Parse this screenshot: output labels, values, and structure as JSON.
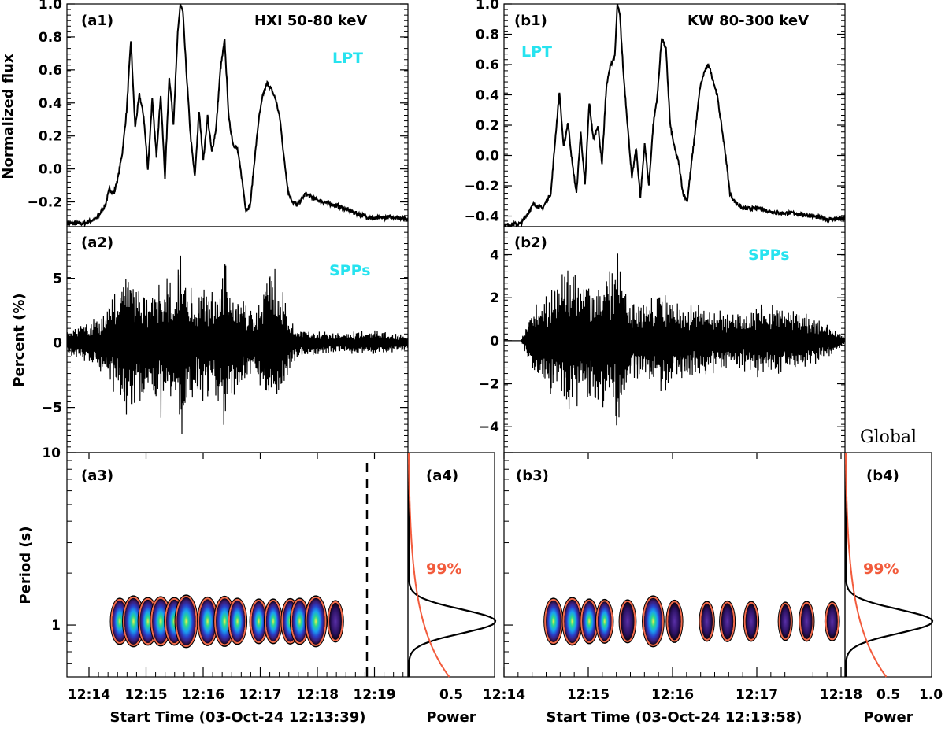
{
  "chart_data": [
    {
      "panel": "a1",
      "type": "line",
      "label": "(a1)",
      "annotation": "HXI 50-80 keV",
      "tag": "LPT",
      "ylabel": "Normalized flux",
      "ylim": [
        -0.35,
        1.0
      ],
      "yticks": [
        "1.0",
        "0.8",
        "0.6",
        "0.4",
        "0.2",
        "0.0",
        "−0.2"
      ],
      "x": [
        0,
        20,
        35,
        45,
        50,
        55,
        60,
        65,
        70,
        75,
        80,
        85,
        90,
        95,
        100,
        105,
        110,
        115,
        120,
        125,
        130,
        133,
        136,
        140,
        145,
        150,
        155,
        160,
        165,
        170,
        175,
        180,
        185,
        190,
        195,
        200,
        205,
        210,
        215,
        220,
        225,
        230,
        235,
        240,
        245,
        250,
        255,
        260,
        265,
        270,
        280,
        290,
        300,
        315,
        330,
        345,
        360,
        380,
        400
      ],
      "y": [
        -0.33,
        -0.33,
        -0.3,
        -0.22,
        -0.12,
        -0.15,
        -0.05,
        0.1,
        0.35,
        0.78,
        0.25,
        0.45,
        0.32,
        0.0,
        0.42,
        0.08,
        0.45,
        -0.05,
        0.56,
        0.28,
        0.82,
        1.0,
        0.95,
        0.6,
        0.2,
        -0.05,
        0.35,
        0.05,
        0.32,
        0.1,
        0.25,
        0.6,
        0.78,
        0.3,
        0.15,
        0.12,
        -0.05,
        -0.25,
        -0.22,
        0.05,
        0.3,
        0.45,
        0.52,
        0.48,
        0.42,
        0.3,
        0.05,
        -0.15,
        -0.2,
        -0.22,
        -0.15,
        -0.18,
        -0.2,
        -0.22,
        -0.25,
        -0.28,
        -0.3,
        -0.29,
        -0.3
      ]
    },
    {
      "panel": "b1",
      "type": "line",
      "label": "(b1)",
      "annotation": "KW 80-300 keV",
      "tag": "LPT",
      "ylim": [
        -0.47,
        1.0
      ],
      "yticks": [
        "1.0",
        "0.8",
        "0.6",
        "0.4",
        "0.2",
        "0.0",
        "−0.2",
        "−0.4"
      ],
      "x": [
        0,
        20,
        35,
        45,
        55,
        60,
        65,
        70,
        75,
        80,
        85,
        90,
        95,
        100,
        105,
        110,
        115,
        120,
        125,
        130,
        133,
        136,
        140,
        145,
        150,
        155,
        160,
        165,
        170,
        175,
        180,
        185,
        190,
        195,
        200,
        205,
        210,
        215,
        220,
        225,
        230,
        235,
        240,
        245,
        250,
        255,
        260,
        265,
        270,
        280,
        300,
        320,
        340,
        360,
        380,
        400
      ],
      "y": [
        -0.46,
        -0.45,
        -0.32,
        -0.35,
        -0.25,
        0.1,
        0.42,
        0.05,
        0.22,
        -0.05,
        -0.25,
        0.15,
        -0.2,
        0.35,
        0.1,
        0.2,
        -0.05,
        0.45,
        0.6,
        0.65,
        1.0,
        0.92,
        0.55,
        0.2,
        -0.15,
        0.05,
        -0.28,
        0.08,
        -0.2,
        0.2,
        0.4,
        0.78,
        0.7,
        0.2,
        0.05,
        -0.05,
        -0.25,
        -0.3,
        -0.05,
        0.2,
        0.45,
        0.55,
        0.6,
        0.5,
        0.4,
        0.2,
        0.0,
        -0.25,
        -0.3,
        -0.35,
        -0.35,
        -0.38,
        -0.38,
        -0.4,
        -0.42,
        -0.42
      ]
    },
    {
      "panel": "a2",
      "type": "line",
      "label": "(a2)",
      "tag": "SPPs",
      "ylabel": "Percent (%)",
      "ylim": [
        -8.5,
        9.0
      ],
      "yticks": [
        "5",
        "0",
        "−5"
      ],
      "envelope_x": [
        0,
        20,
        35,
        45,
        55,
        62,
        72,
        82,
        88,
        95,
        110,
        125,
        130,
        134,
        140,
        150,
        160,
        170,
        180,
        185,
        190,
        200,
        210,
        222,
        230,
        236,
        242,
        250,
        262,
        275,
        290,
        310,
        330,
        360,
        380,
        400
      ],
      "envelope_amp": [
        1.0,
        1.5,
        2.0,
        3.0,
        4.0,
        5.0,
        6.0,
        4.5,
        5.5,
        4.0,
        6.0,
        4.5,
        6.5,
        8.0,
        5.0,
        4.0,
        5.0,
        4.0,
        5.5,
        8.5,
        5.0,
        4.0,
        3.0,
        2.5,
        4.5,
        5.5,
        6.0,
        5.0,
        2.0,
        1.2,
        1.0,
        0.8,
        0.9,
        1.0,
        0.8,
        0.6
      ]
    },
    {
      "panel": "b2",
      "type": "line",
      "label": "(b2)",
      "tag": "SPPs",
      "ylim": [
        -5.2,
        5.3
      ],
      "yticks": [
        "4",
        "2",
        "0",
        "−2",
        "−4"
      ],
      "envelope_x": [
        0,
        20,
        28,
        35,
        45,
        60,
        75,
        90,
        105,
        120,
        130,
        134,
        140,
        150,
        160,
        175,
        190,
        200,
        215,
        230,
        250,
        270,
        290,
        305,
        320,
        340,
        360,
        380,
        400
      ],
      "envelope_amp": [
        0,
        0,
        1.0,
        1.8,
        2.2,
        2.8,
        3.5,
        3.0,
        3.0,
        3.2,
        3.5,
        5.0,
        3.2,
        2.0,
        1.8,
        2.2,
        2.5,
        2.0,
        1.6,
        2.0,
        1.5,
        1.2,
        1.6,
        2.0,
        1.8,
        1.5,
        1.2,
        0.8,
        0.2
      ]
    },
    {
      "panel": "a3",
      "type": "heatmap",
      "label": "(a3)",
      "ylabel": "Period (s)",
      "yaxis": "log",
      "ylim": [
        0.5,
        10
      ],
      "yticks": [
        "10",
        "1"
      ],
      "xticks": [
        "12:14",
        "12:15",
        "12:16",
        "12:17",
        "12:18",
        "12:19"
      ],
      "xlabel": "Start Time (03-Oct-24 12:13:39)",
      "blobs_x": [
        62,
        78,
        95,
        110,
        126,
        140,
        165,
        185,
        200,
        225,
        242,
        262,
        273,
        292,
        315
      ],
      "blobs_strength": [
        0.6,
        0.9,
        0.7,
        0.8,
        0.7,
        1.0,
        0.75,
        0.85,
        0.6,
        0.5,
        0.5,
        0.55,
        0.6,
        0.9,
        0.3
      ],
      "period_center": 1.05
    },
    {
      "panel": "a4",
      "type": "line",
      "label": "(a4)",
      "xlabel": "Power",
      "xtick": "0.5",
      "significance_label": "99%"
    },
    {
      "panel": "b3",
      "type": "heatmap",
      "label": "(b3)",
      "xticks": [
        "12:14",
        "12:15",
        "12:16",
        "12:17",
        "12:18"
      ],
      "xlabel": "Start Time (03-Oct-24 12:13:58)",
      "blobs_x": [
        58,
        80,
        100,
        118,
        145,
        175,
        200,
        238,
        262,
        290,
        330,
        355,
        385
      ],
      "blobs_strength": [
        0.6,
        0.7,
        0.5,
        0.45,
        0.4,
        0.9,
        0.35,
        0.2,
        0.25,
        0.2,
        0.1,
        0.2,
        0.15
      ],
      "period_center": 1.05
    },
    {
      "panel": "b4",
      "type": "line",
      "label": "(b4)",
      "title": "Global",
      "xlabel": "Power",
      "xticks": [
        "0.5",
        "1.0"
      ],
      "significance_label": "99%"
    }
  ]
}
